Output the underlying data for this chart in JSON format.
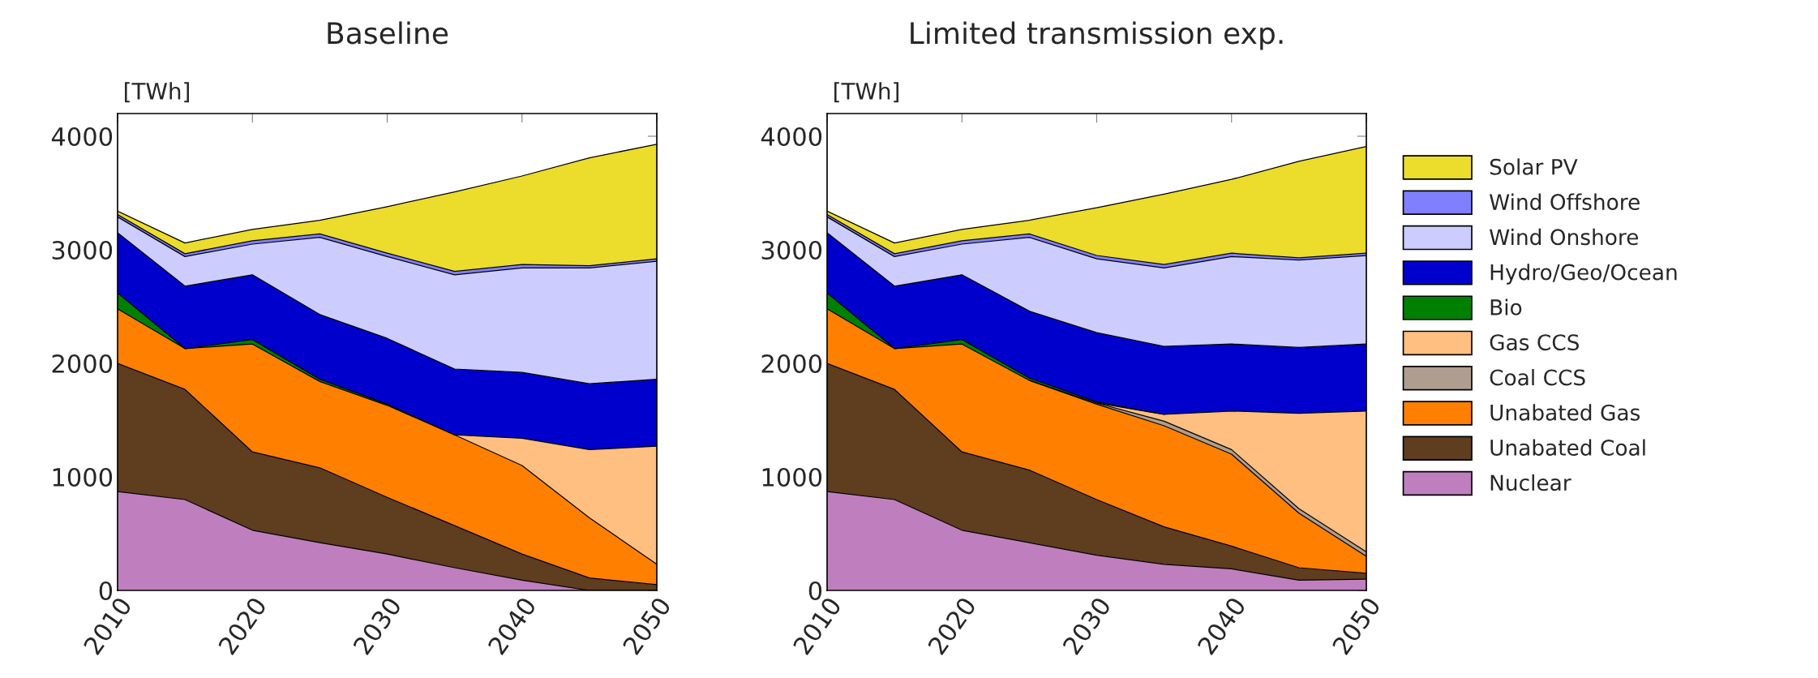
{
  "chart_data": [
    {
      "type": "area",
      "stacked": true,
      "title": "Baseline",
      "ylabel": "[TWh]",
      "x": [
        2010,
        2015,
        2020,
        2025,
        2030,
        2035,
        2040,
        2045,
        2050
      ],
      "xlim": [
        2010,
        2050
      ],
      "xticks": [
        2010,
        2020,
        2030,
        2040,
        2050
      ],
      "ylim": [
        0,
        4200
      ],
      "yticks": [
        0,
        1000,
        2000,
        3000,
        4000
      ],
      "grid": false,
      "legend": "right",
      "series": [
        {
          "name": "Nuclear",
          "color": "#bf7fbf",
          "values": [
            870,
            800,
            530,
            420,
            320,
            200,
            90,
            0,
            0
          ]
        },
        {
          "name": "Unabated Coal",
          "color": "#5f3d1f",
          "values": [
            1130,
            970,
            690,
            660,
            500,
            370,
            230,
            110,
            50
          ]
        },
        {
          "name": "Unabated Gas",
          "color": "#ff8000",
          "values": [
            480,
            360,
            950,
            760,
            810,
            800,
            780,
            530,
            180
          ]
        },
        {
          "name": "Coal CCS",
          "color": "#af9e8f",
          "values": [
            null,
            null,
            null,
            null,
            null,
            null,
            null,
            null,
            null
          ]
        },
        {
          "name": "Gas CCS",
          "color": "#ffbf80",
          "values": [
            null,
            null,
            null,
            null,
            null,
            0,
            240,
            600,
            1040
          ]
        },
        {
          "name": "Bio",
          "color": "#008000",
          "values": [
            140,
            0,
            40,
            20,
            10,
            0,
            null,
            null,
            null
          ]
        },
        {
          "name": "Hydro/Geo/Ocean",
          "color": "#0000cc",
          "values": [
            530,
            550,
            570,
            570,
            580,
            580,
            580,
            580,
            590
          ]
        },
        {
          "name": "Wind Onshore",
          "color": "#ccccff",
          "values": [
            140,
            260,
            270,
            680,
            720,
            830,
            920,
            1020,
            1040
          ]
        },
        {
          "name": "Wind Offshore",
          "color": "#8080ff",
          "values": [
            20,
            25,
            30,
            30,
            30,
            30,
            30,
            20,
            20
          ]
        },
        {
          "name": "Solar PV",
          "color": "#ecdc2c",
          "values": [
            30,
            95,
            100,
            120,
            410,
            700,
            780,
            950,
            1010
          ]
        }
      ]
    },
    {
      "type": "area",
      "stacked": true,
      "title": "Limited transmission exp.",
      "ylabel": "[TWh]",
      "x": [
        2010,
        2015,
        2020,
        2025,
        2030,
        2035,
        2040,
        2045,
        2050
      ],
      "xlim": [
        2010,
        2050
      ],
      "xticks": [
        2010,
        2020,
        2030,
        2040,
        2050
      ],
      "ylim": [
        0,
        4200
      ],
      "yticks": [
        0,
        1000,
        2000,
        3000,
        4000
      ],
      "grid": false,
      "series": [
        {
          "color": "#bf7fbf",
          "values": [
            870,
            800,
            530,
            420,
            310,
            230,
            190,
            90,
            100
          ]
        },
        {
          "color": "#5f3d1f",
          "values": [
            1130,
            970,
            690,
            640,
            490,
            330,
            200,
            110,
            50
          ]
        },
        {
          "color": "#ff8000",
          "values": [
            480,
            360,
            950,
            790,
            840,
            890,
            810,
            480,
            150
          ]
        },
        {
          "color": "#af9e8f",
          "values": [
            null,
            null,
            null,
            0,
            10,
            40,
            40,
            40,
            40
          ]
        },
        {
          "color": "#ffbf80",
          "values": [
            null,
            null,
            null,
            null,
            0,
            60,
            340,
            840,
            1240
          ]
        },
        {
          "color": "#008000",
          "values": [
            140,
            0,
            40,
            20,
            10,
            0,
            null,
            null,
            null
          ]
        },
        {
          "color": "#0000cc",
          "values": [
            530,
            550,
            570,
            590,
            610,
            600,
            590,
            580,
            590
          ]
        },
        {
          "color": "#ccccff",
          "values": [
            140,
            260,
            270,
            650,
            650,
            690,
            770,
            770,
            780
          ]
        },
        {
          "color": "#8080ff",
          "values": [
            20,
            25,
            30,
            30,
            30,
            30,
            30,
            20,
            20
          ]
        },
        {
          "color": "#ecdc2c",
          "values": [
            30,
            95,
            100,
            120,
            420,
            620,
            650,
            850,
            940
          ]
        }
      ]
    }
  ]
}
